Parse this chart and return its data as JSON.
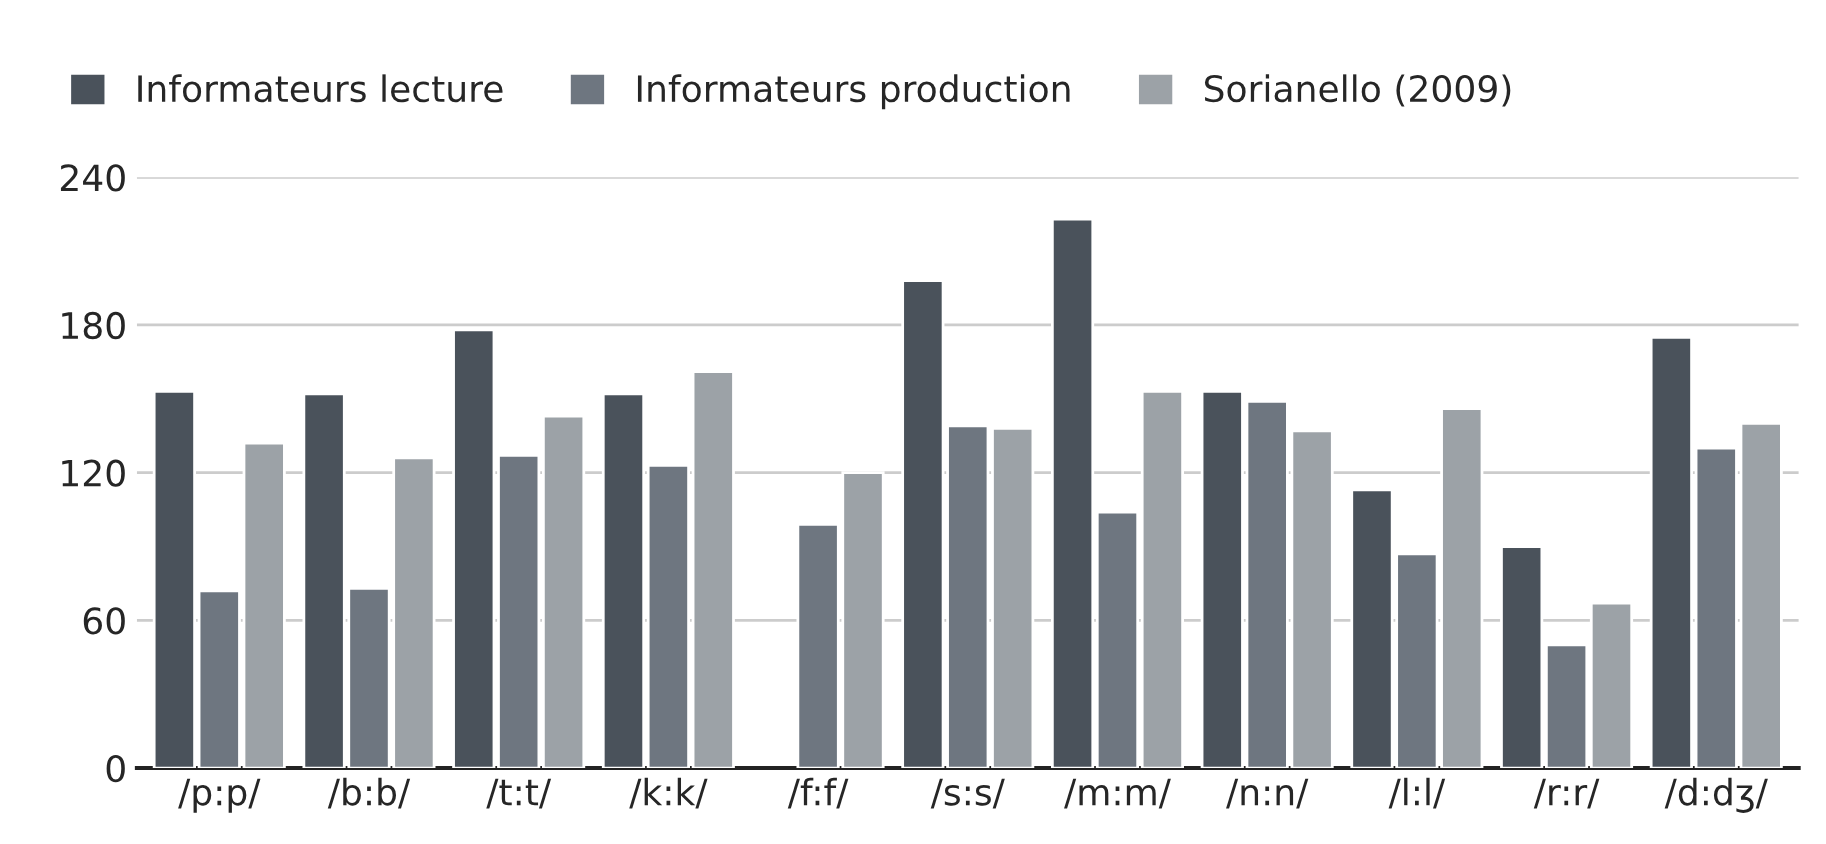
{
  "chart_data": {
    "type": "bar",
    "categories": [
      "/p:p/",
      "/b:b/",
      "/t:t/",
      "/k:k/",
      "/f:f/",
      "/s:s/",
      "/m:m/",
      "/n:n/",
      "/l:l/",
      "/r:r/",
      "/d:dʒ/"
    ],
    "series": [
      {
        "name": "Informateurs lecture",
        "color": "#4a525b",
        "values": [
          153,
          152,
          178,
          152,
          null,
          198,
          223,
          153,
          113,
          90,
          175
        ]
      },
      {
        "name": "Informateurs production",
        "color": "#6e7680",
        "values": [
          72,
          73,
          127,
          123,
          99,
          139,
          104,
          149,
          87,
          50,
          130
        ]
      },
      {
        "name": "Sorianello (2009)",
        "color": "#9ca2a7",
        "values": [
          132,
          126,
          143,
          161,
          120,
          138,
          153,
          137,
          146,
          67,
          140
        ]
      }
    ],
    "ylim": [
      0,
      240
    ],
    "yticks": [
      0,
      60,
      120,
      180,
      240
    ],
    "grid": "y",
    "legend": "top left"
  }
}
